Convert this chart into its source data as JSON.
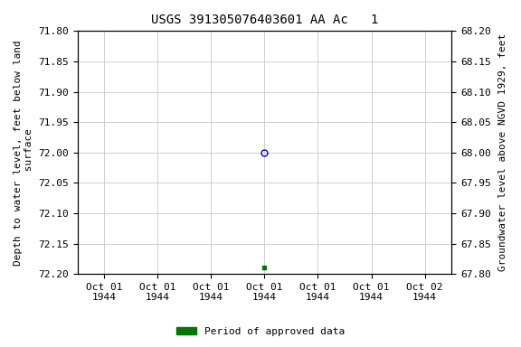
{
  "title": "USGS 391305076403601 AA Ac   1",
  "left_ylabel_line1": "Depth to water level, feet below land",
  "left_ylabel_line2": " surface",
  "right_ylabel": "Groundwater level above NGVD 1929, feet",
  "ylim_left_top": 71.8,
  "ylim_left_bottom": 72.2,
  "ylim_right_top": 68.2,
  "ylim_right_bottom": 67.8,
  "yticks_left": [
    71.8,
    71.85,
    71.9,
    71.95,
    72.0,
    72.05,
    72.1,
    72.15,
    72.2
  ],
  "yticks_right": [
    68.2,
    68.15,
    68.1,
    68.05,
    68.0,
    67.95,
    67.9,
    67.85,
    67.8
  ],
  "ytick_labels_left": [
    "71.80",
    "71.85",
    "71.90",
    "71.95",
    "72.00",
    "72.05",
    "72.10",
    "72.15",
    "72.20"
  ],
  "ytick_labels_right": [
    "68.20",
    "68.15",
    "68.10",
    "68.05",
    "68.00",
    "67.95",
    "67.90",
    "67.85",
    "67.80"
  ],
  "blue_point_x": 3,
  "blue_point_y": 72.0,
  "green_point_x": 3,
  "green_point_y": 72.19,
  "xtick_positions": [
    0,
    1,
    2,
    3,
    4,
    5,
    6
  ],
  "xtick_labels": [
    "Oct 01\n1944",
    "Oct 01\n1944",
    "Oct 01\n1944",
    "Oct 01\n1944",
    "Oct 01\n1944",
    "Oct 01\n1944",
    "Oct 02\n1944"
  ],
  "xlim": [
    -0.5,
    6.5
  ],
  "grid_color": "#c8c8c8",
  "background_color": "#ffffff",
  "blue_marker_color": "#0000bb",
  "green_marker_color": "#007700",
  "legend_label": "Period of approved data",
  "title_fontsize": 10,
  "label_fontsize": 8,
  "tick_fontsize": 8
}
